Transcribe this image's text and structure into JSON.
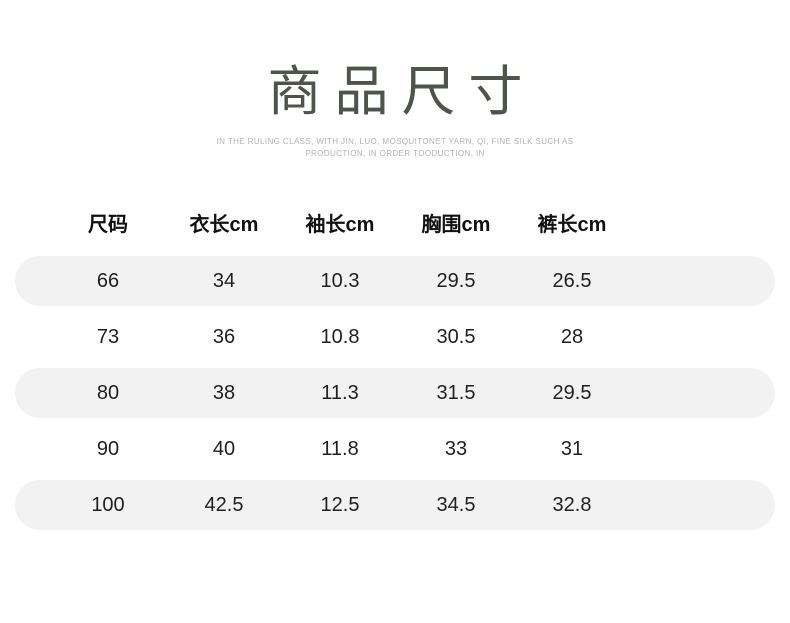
{
  "title": "商品尺寸",
  "subtitle": {
    "line1": "IN THE RULING CLASS, WITH JIN, LUO, MOSQUITONET YARN, QI, FINE SILK SUCH AS",
    "line2": "PRODUCTION, IN ORDER TOODUCTION, IN"
  },
  "table": {
    "headers": [
      "尺码",
      "衣长cm",
      "袖长cm",
      "胸围cm",
      "裤长cm"
    ],
    "rows": [
      [
        "66",
        "34",
        "10.3",
        "29.5",
        "26.5"
      ],
      [
        "73",
        "36",
        "10.8",
        "30.5",
        "28"
      ],
      [
        "80",
        "38",
        "11.3",
        "31.5",
        "29.5"
      ],
      [
        "90",
        "40",
        "11.8",
        "33",
        "31"
      ],
      [
        "100",
        "42.5",
        "12.5",
        "34.5",
        "32.8"
      ]
    ]
  },
  "colors": {
    "stripe": "#f2f2f2",
    "title": "#4f544a",
    "subtitle": "#b3b3b3",
    "text": "#1f1f1f"
  }
}
